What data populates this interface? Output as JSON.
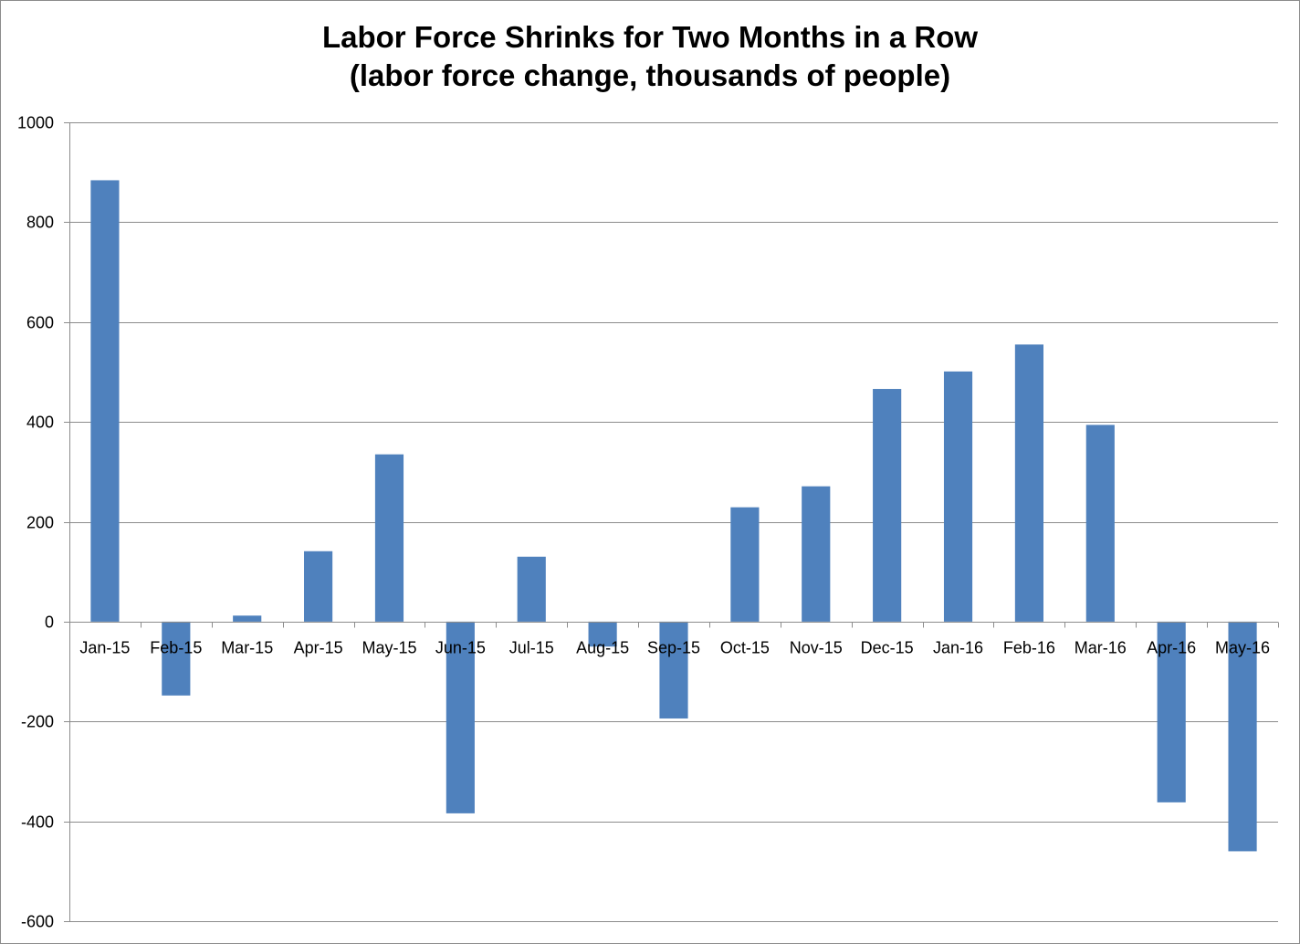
{
  "chart_data": {
    "type": "bar",
    "title_lines": [
      "Labor Force Shrinks for Two Months in a Row",
      "(labor force change, thousands of people)"
    ],
    "xlabel": "",
    "ylabel": "",
    "categories": [
      "Jan-15",
      "Feb-15",
      "Mar-15",
      "Apr-15",
      "May-15",
      "Jun-15",
      "Jul-15",
      "Aug-15",
      "Sep-15",
      "Oct-15",
      "Nov-15",
      "Dec-15",
      "Jan-16",
      "Feb-16",
      "Mar-16",
      "Apr-16",
      "May-16"
    ],
    "values": [
      884,
      -148,
      12,
      141,
      335,
      -384,
      130,
      -50,
      -194,
      229,
      271,
      466,
      501,
      555,
      394,
      -362,
      -460
    ],
    "ylim": [
      -600,
      1000
    ],
    "yticks": [
      1000,
      800,
      600,
      400,
      200,
      0,
      -200,
      -400,
      -600
    ],
    "grid": true,
    "legend": "none",
    "bar_color": "#4f81bd"
  }
}
